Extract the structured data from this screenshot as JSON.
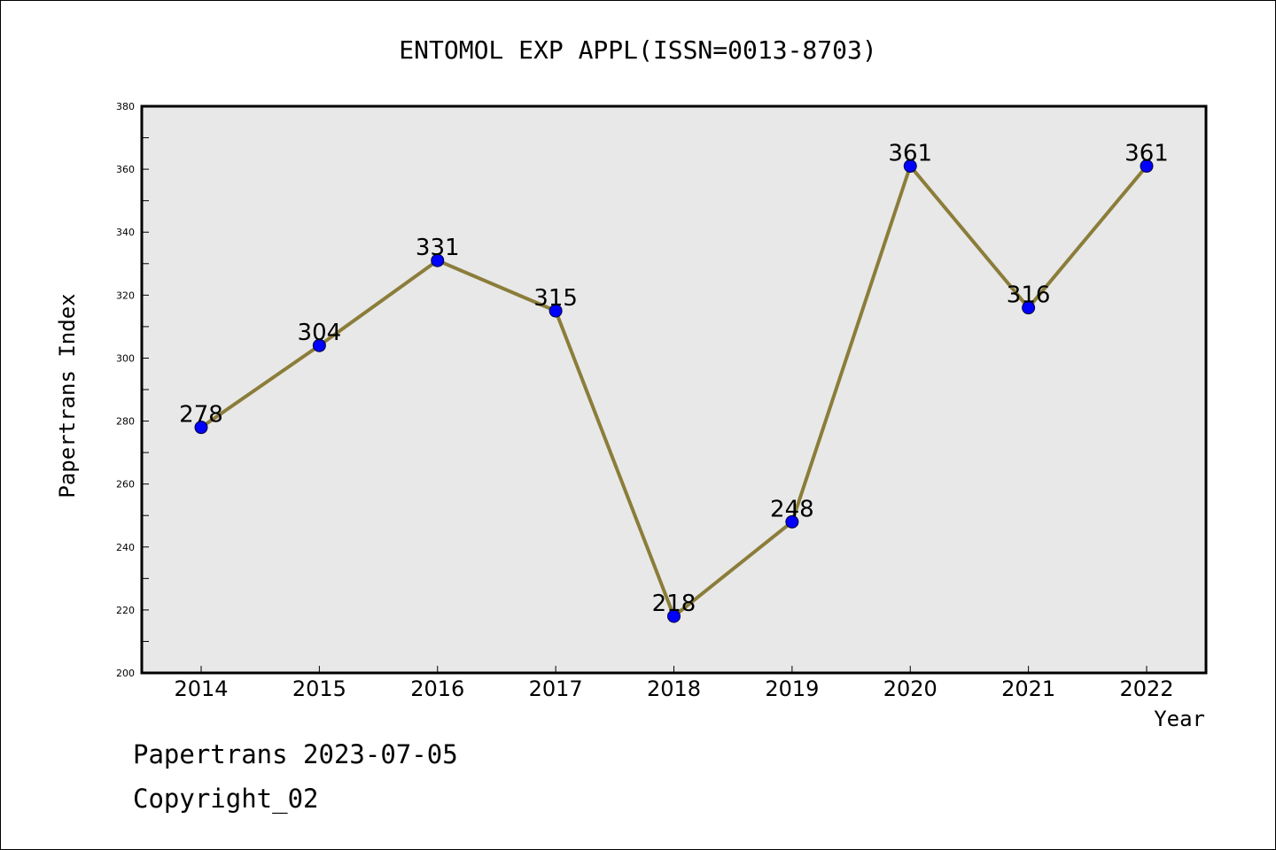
{
  "chart_data": {
    "type": "line",
    "title": "ENTOMOL EXP APPL(ISSN=0013-8703)",
    "xlabel": "Year",
    "ylabel": "Papertrans Index",
    "categories": [
      "2014",
      "2015",
      "2016",
      "2017",
      "2018",
      "2019",
      "2020",
      "2021",
      "2022"
    ],
    "series": [
      {
        "values": [
          278,
          304,
          331,
          315,
          218,
          248,
          361,
          316,
          361
        ],
        "data_labels": [
          "278",
          "304",
          "331",
          "315",
          "218",
          "248",
          "361",
          "316",
          "361"
        ]
      }
    ],
    "ylim": [
      200,
      380
    ],
    "y_ticks": [
      "200",
      "220",
      "240",
      "260",
      "280",
      "300",
      "320",
      "340",
      "360",
      "380"
    ],
    "grid": false,
    "line_color": "#8B7D3A",
    "marker_color": "#0000FF",
    "plot_background": "#E8E8E8"
  },
  "footer": {
    "line1": "Papertrans 2023-07-05",
    "line2": "Copyright_02"
  }
}
